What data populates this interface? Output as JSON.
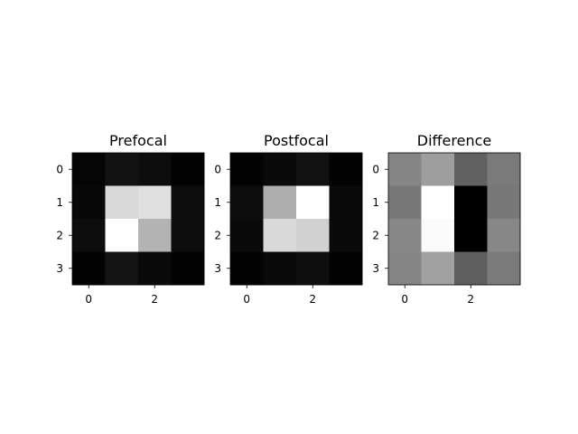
{
  "chart_data": [
    {
      "type": "heatmap",
      "title": "Prefocal",
      "colormap": "gray",
      "x_ticks": [
        "0",
        "2"
      ],
      "y_ticks": [
        "0",
        "1",
        "2",
        "3"
      ],
      "xlabel": "",
      "ylabel": "",
      "values": [
        [
          0.02,
          0.07,
          0.05,
          0.01
        ],
        [
          0.03,
          0.85,
          0.88,
          0.05
        ],
        [
          0.05,
          1.0,
          0.7,
          0.05
        ],
        [
          0.01,
          0.08,
          0.04,
          0.01
        ]
      ]
    },
    {
      "type": "heatmap",
      "title": "Postfocal",
      "colormap": "gray",
      "x_ticks": [
        "0",
        "2"
      ],
      "y_ticks": [
        "0",
        "1",
        "2",
        "3"
      ],
      "xlabel": "",
      "ylabel": "",
      "values": [
        [
          0.01,
          0.04,
          0.07,
          0.01
        ],
        [
          0.05,
          0.68,
          1.0,
          0.04
        ],
        [
          0.04,
          0.85,
          0.82,
          0.04
        ],
        [
          0.01,
          0.04,
          0.06,
          0.01
        ]
      ]
    },
    {
      "type": "heatmap",
      "title": "Difference",
      "colormap": "gray",
      "x_ticks": [
        "0",
        "2"
      ],
      "y_ticks": [
        "0",
        "1",
        "2",
        "3"
      ],
      "xlabel": "",
      "ylabel": "",
      "values": [
        [
          0.52,
          0.62,
          0.38,
          0.48
        ],
        [
          0.47,
          1.0,
          0.0,
          0.47
        ],
        [
          0.53,
          0.98,
          0.0,
          0.53
        ],
        [
          0.52,
          0.63,
          0.37,
          0.48
        ]
      ]
    }
  ]
}
